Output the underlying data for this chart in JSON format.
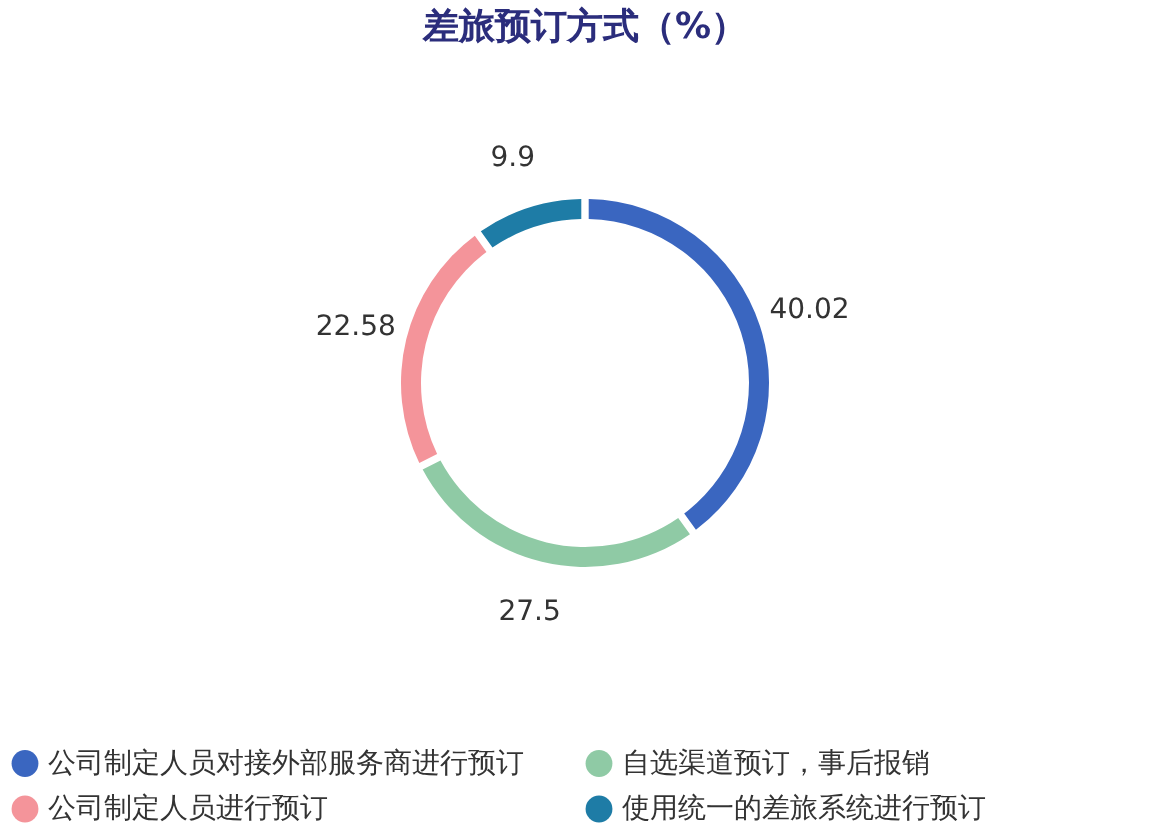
{
  "chart_data": {
    "type": "donut",
    "title": "差旅预订方式（%）",
    "categories": [
      "公司制定人员对接外部服务商进行预订",
      "自选渠道预订，事后报销",
      "公司制定人员进行预订",
      "使用统一的差旅系统进行预订"
    ],
    "values": [
      40.02,
      27.5,
      22.58,
      9.9
    ],
    "colors": [
      "#3a66c0",
      "#8fcaa5",
      "#f4949a",
      "#1e7ca6"
    ],
    "data_labels": true,
    "legend": "bottom"
  }
}
